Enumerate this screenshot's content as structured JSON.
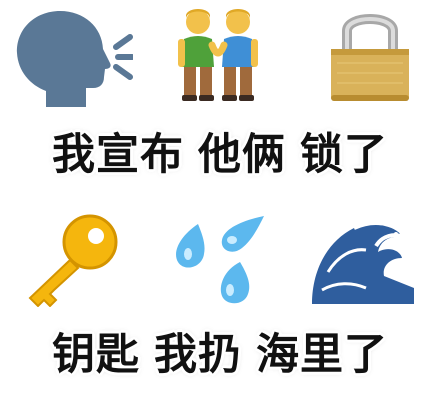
{
  "rows": [
    {
      "emoji": [
        {
          "icon": "speaking-head-icon"
        },
        {
          "icon": "two-men-holding-hands-icon"
        },
        {
          "icon": "padlock-icon"
        }
      ],
      "caption": [
        "我宣布",
        "他俩",
        "锁了"
      ]
    },
    {
      "emoji": [
        {
          "icon": "key-icon"
        },
        {
          "icon": "sweat-droplets-icon"
        },
        {
          "icon": "water-wave-icon"
        }
      ],
      "caption": [
        "钥匙",
        "我扔",
        "海里了"
      ]
    }
  ],
  "colors": {
    "head": "#5a7896",
    "skin": "#f2c14b",
    "shirt_green": "#4fa13a",
    "shirt_blue": "#3f8fd6",
    "gold": "#d9b25a",
    "key": "#f5b60d",
    "drop": "#5cb8ee",
    "wave": "#2f5e9e",
    "text": "#111111"
  }
}
